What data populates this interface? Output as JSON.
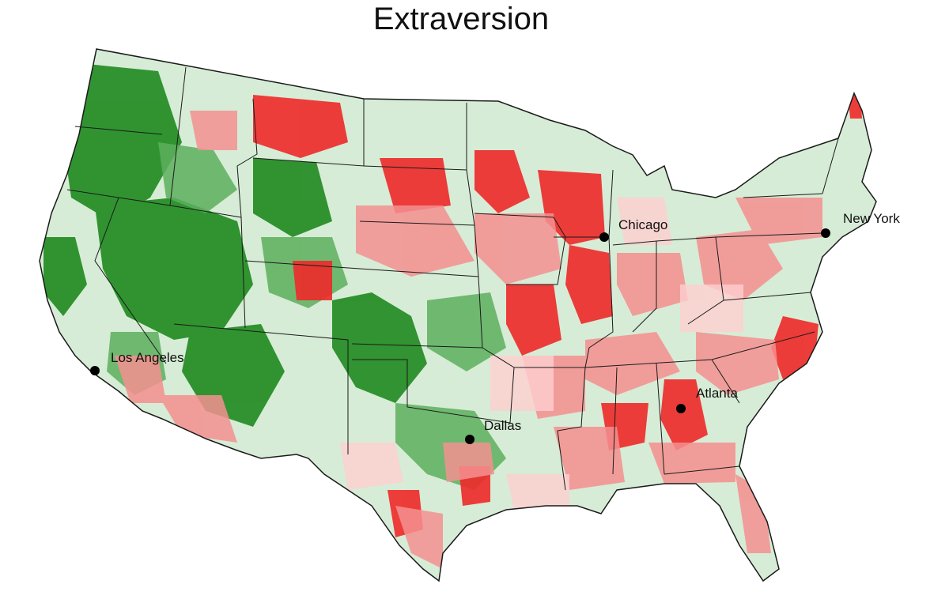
{
  "title": "Extraversion",
  "colors": {
    "high": "#ff0000",
    "mid_high": "#ff7f7f",
    "neutral_pink": "#ffc8c8",
    "neutral_green": "#cfe8cf",
    "mid_low": "#4fa84f",
    "low": "#007a00",
    "border": "#1a1a1a",
    "city_dot": "#000000"
  },
  "cities": [
    {
      "name": "Chicago"
    },
    {
      "name": "New York"
    },
    {
      "name": "Los Angeles"
    },
    {
      "name": "Dallas"
    },
    {
      "name": "Atlanta"
    }
  ]
}
